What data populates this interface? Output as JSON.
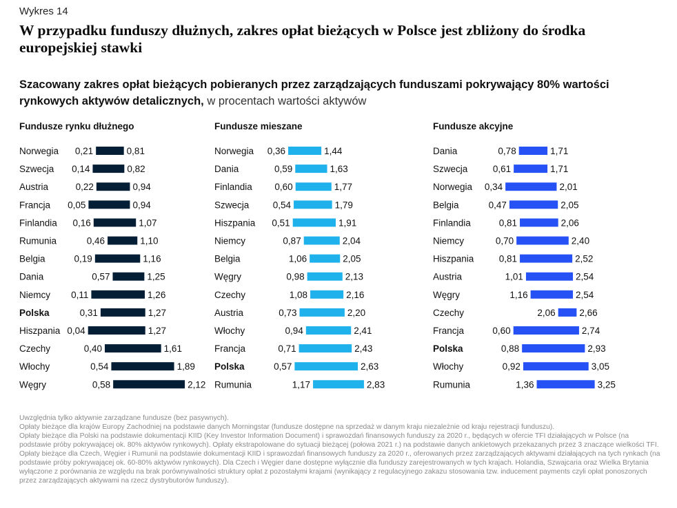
{
  "figure_label": "Wykres 14",
  "title": "W przypadku funduszy dłużnych, zakres opłat bieżących w Polsce jest zbliżony do środka europejskiej stawki",
  "subtitle_bold": "Szacowany zakres opłat bieżących pobieranych przez zarządzających funduszami pokrywający 80% wartości rynkowych aktywów detalicznych,",
  "subtitle_normal": " w procentach wartości aktywów",
  "colors": {
    "debt": "#041e35",
    "mixed": "#1fb1ec",
    "equity": "#2551f5"
  },
  "chart_data": [
    {
      "type": "bar",
      "title": "Fundusze rynku dłużnego",
      "color": "#041e35",
      "highlight": "Polska",
      "rows": [
        {
          "label": "Norwegia",
          "low": "0,21",
          "high": "0,81"
        },
        {
          "label": "Szwecja",
          "low": "0,14",
          "high": "0,82"
        },
        {
          "label": "Austria",
          "low": "0,22",
          "high": "0,94"
        },
        {
          "label": "Francja",
          "low": "0,05",
          "high": "0,94"
        },
        {
          "label": "Finlandia",
          "low": "0,16",
          "high": "1,07"
        },
        {
          "label": "Rumunia",
          "low": "0,46",
          "high": "1,10"
        },
        {
          "label": "Belgia",
          "low": "0,19",
          "high": "1,16"
        },
        {
          "label": "Dania",
          "low": "0,57",
          "high": "1,25"
        },
        {
          "label": "Niemcy",
          "low": "0,11",
          "high": "1,26"
        },
        {
          "label": "Polska",
          "low": "0,31",
          "high": "1,27"
        },
        {
          "label": "Hiszpania",
          "low": "0,04",
          "high": "1,27"
        },
        {
          "label": "Czechy",
          "low": "0,40",
          "high": "1,61"
        },
        {
          "label": "Włochy",
          "low": "0,54",
          "high": "1,89"
        },
        {
          "label": "Węgry",
          "low": "0,58",
          "high": "2,12"
        }
      ]
    },
    {
      "type": "bar",
      "title": "Fundusze mieszane",
      "color": "#1fb1ec",
      "highlight": "Polska",
      "rows": [
        {
          "label": "Norwegia",
          "low": "0,36",
          "high": "1,44"
        },
        {
          "label": "Dania",
          "low": "0,59",
          "high": "1,63"
        },
        {
          "label": "Finlandia",
          "low": "0,60",
          "high": "1,77"
        },
        {
          "label": "Szwecja",
          "low": "0,54",
          "high": "1,79"
        },
        {
          "label": "Hiszpania",
          "low": "0,51",
          "high": "1,91"
        },
        {
          "label": "Niemcy",
          "low": "0,87",
          "high": "2,04"
        },
        {
          "label": "Belgia",
          "low": "1,06",
          "high": "2,05"
        },
        {
          "label": "Węgry",
          "low": "0,98",
          "high": "2,13"
        },
        {
          "label": "Czechy",
          "low": "1,08",
          "high": "2,16"
        },
        {
          "label": "Austria",
          "low": "0,73",
          "high": "2,20"
        },
        {
          "label": "Włochy",
          "low": "0,94",
          "high": "2,41"
        },
        {
          "label": "Francja",
          "low": "0,71",
          "high": "2,43"
        },
        {
          "label": "Polska",
          "low": "0,57",
          "high": "2,63"
        },
        {
          "label": "Rumunia",
          "low": "1,17",
          "high": "2,83"
        }
      ]
    },
    {
      "type": "bar",
      "title": "Fundusze akcyjne",
      "color": "#2551f5",
      "highlight": "Polska",
      "rows": [
        {
          "label": "Dania",
          "low": "0,78",
          "high": "1,71"
        },
        {
          "label": "Szwecja",
          "low": "0,61",
          "high": "1,71"
        },
        {
          "label": "Norwegia",
          "low": "0,34",
          "high": "2,01"
        },
        {
          "label": "Belgia",
          "low": "0,47",
          "high": "2,05"
        },
        {
          "label": "Finlandia",
          "low": "0,81",
          "high": "2,06"
        },
        {
          "label": "Niemcy",
          "low": "0,70",
          "high": "2,40"
        },
        {
          "label": "Hiszpania",
          "low": "0,81",
          "high": "2,52"
        },
        {
          "label": "Austria",
          "low": "1,01",
          "high": "2,54"
        },
        {
          "label": "Węgry",
          "low": "1,16",
          "high": "2,54"
        },
        {
          "label": "Czechy",
          "low": "2,06",
          "high": "2,66"
        },
        {
          "label": "Francja",
          "low": "0,60",
          "high": "2,74"
        },
        {
          "label": "Polska",
          "low": "0,88",
          "high": "2,93"
        },
        {
          "label": "Włochy",
          "low": "0,92",
          "high": "3,05"
        },
        {
          "label": "Rumunia",
          "low": "1,36",
          "high": "3,25"
        }
      ]
    }
  ],
  "footnotes": [
    "Uwzględnia tylko aktywnie zarządzane fundusze (bez pasywnych).",
    "Opłaty bieżące dla krajów Europy Zachodniej na podstawie danych Morningstar (fundusze dostępne na sprzedaż w danym kraju niezależnie od kraju rejestracji funduszu).",
    "Opłaty bieżące dla Polski na podstawie dokumentacji KIID (Key Investor Information Document) i sprawozdań finansowych funduszy za 2020 r., będących w ofercie TFI działających w Polsce (na podstawie próby pokrywającej ok. 80% aktywów rynkowych). Opłaty ekstrapolowane do sytuacji bieżącej (połowa 2021 r.) na podstawie danych ankietowych przekazanych przez 3 znaczące wielkości TFI. Opłaty bieżące dla Czech, Węgier i Rumunii na podstawie dokumentacji KIID i sprawozdań finansowych funduszy za 2020 r., oferowanych przez zarządzających aktywami działających na tych rynkach (na podstawie próby pokrywającej ok. 60-80% aktywów rynkowych). Dla Czech i Węgier dane dostępne wyłącznie dla funduszy zarejestrowanych w tych krajach. Holandia, Szwajcaria oraz Wielka Brytania wyłączone z porównania ze względu na brak porównywalności struktury opłat z pozostałymi krajami (wynikający z regulacyjnego zakazu stosowania tzw. inducement payments czyli opłat ponoszonych przez zarządzających aktywami na rzecz dystrybutorów funduszy)."
  ]
}
